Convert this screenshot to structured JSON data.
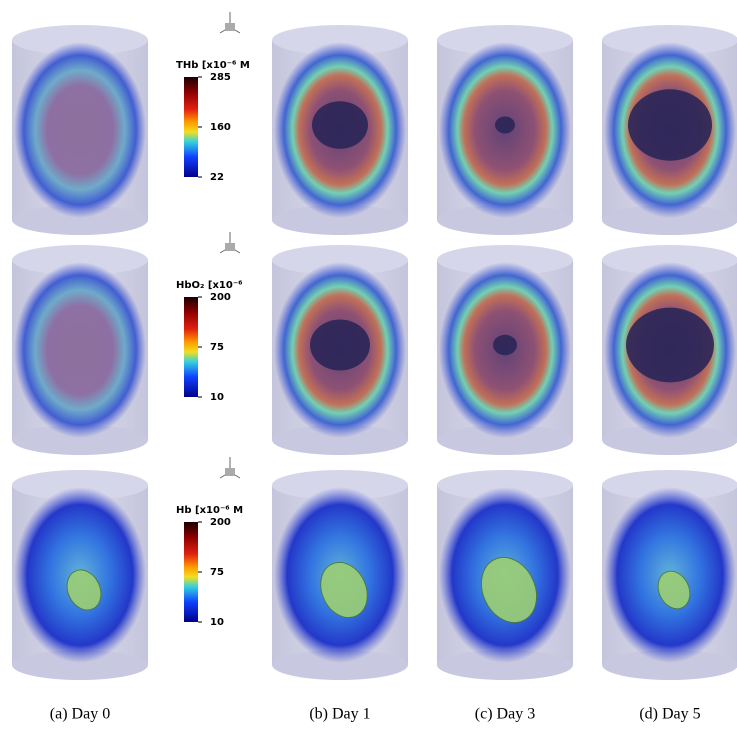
{
  "rows": [
    {
      "label": "THb [x10⁻⁶ M",
      "ticks": [
        285,
        160,
        22
      ]
    },
    {
      "label": "HbO₂ [x10⁻⁶",
      "ticks": [
        200,
        75,
        10
      ]
    },
    {
      "label": "Hb [x10⁻⁶ M",
      "ticks": [
        200,
        75,
        10
      ]
    }
  ],
  "captions": [
    "(a) Day 0",
    "(b) Day 1",
    "(c) Day 3",
    "(d) Day 5"
  ]
}
